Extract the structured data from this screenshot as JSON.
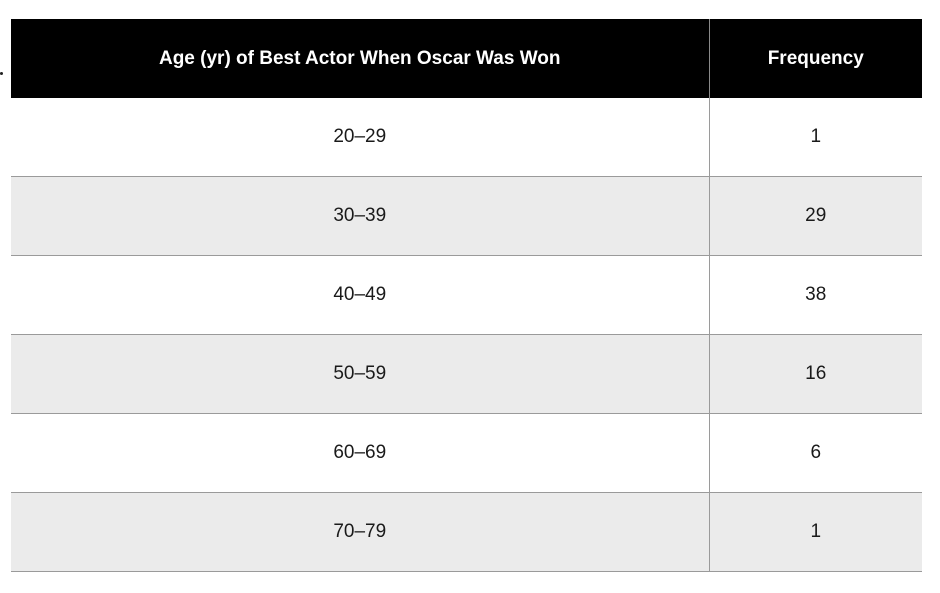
{
  "table": {
    "headers": {
      "age": "Age (yr) of Best Actor When Oscar Was Won",
      "frequency": "Frequency"
    },
    "rows": [
      {
        "age": "20–29",
        "frequency": "1"
      },
      {
        "age": "30–39",
        "frequency": "29"
      },
      {
        "age": "40–49",
        "frequency": "38"
      },
      {
        "age": "50–59",
        "frequency": "16"
      },
      {
        "age": "60–69",
        "frequency": "6"
      },
      {
        "age": "70–79",
        "frequency": "1"
      }
    ]
  },
  "colors": {
    "header_background": "#000000",
    "header_text": "#ffffff",
    "alternate_row": "#ebebeb",
    "divider": "#9a9a9a"
  }
}
